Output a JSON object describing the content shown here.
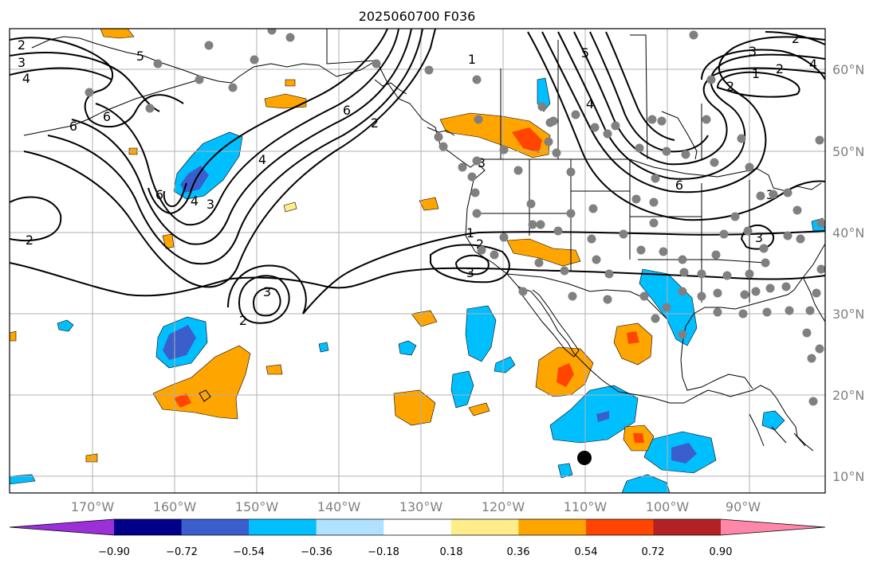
{
  "title": "2025060700 F036",
  "latitude_labels": [
    "60°N",
    "50°N",
    "40°N",
    "30°N",
    "20°N",
    "10°N"
  ],
  "longitude_labels": [
    "170°W",
    "160°W",
    "150°W",
    "140°W",
    "130°W",
    "120°W",
    "110°W",
    "100°W",
    "90°W"
  ],
  "colorbar": {
    "ticks": [
      "−0.90",
      "−0.72",
      "−0.54",
      "−0.36",
      "−0.18",
      "0.18",
      "0.36",
      "0.54",
      "0.72",
      "0.90"
    ],
    "colors": [
      "#9b30d9",
      "#00008b",
      "#3a5fcd",
      "#00bfff",
      "#b0e2ff",
      "#ffffff",
      "#ffec8b",
      "#ffa500",
      "#ff4500",
      "#b22222",
      "#ff88aa"
    ]
  },
  "contour_labels": [
    "2",
    "3",
    "4",
    "5",
    "6",
    "6",
    "4",
    "2",
    "6",
    "4",
    "3",
    "2",
    "6",
    "3",
    "3",
    "2",
    "1",
    "2",
    "3",
    "5",
    "4",
    "3",
    "2",
    "1",
    "6",
    "4",
    "3",
    "2",
    "1",
    "3",
    "2"
  ],
  "colors": {
    "land_outline": "#000000",
    "gridline": "#b0b0b0",
    "station_dot": "#808080",
    "marker": "#000000"
  }
}
